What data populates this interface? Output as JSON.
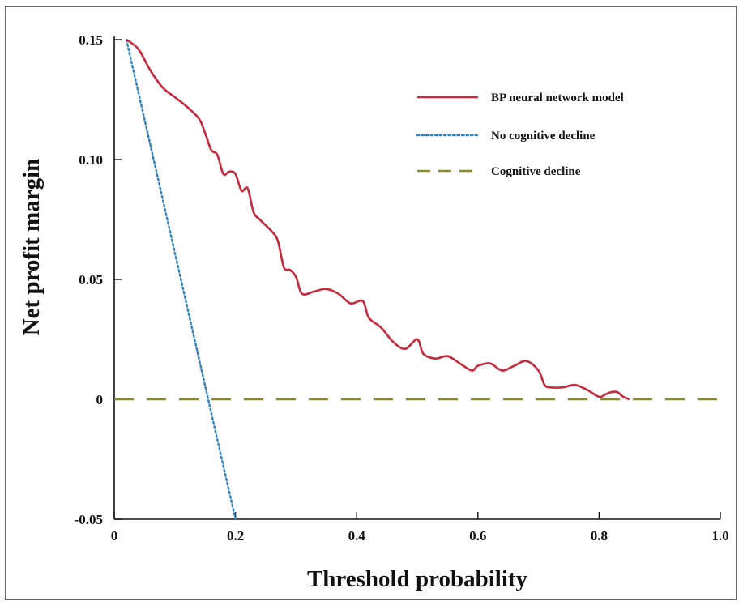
{
  "chart_data": {
    "type": "line",
    "xlabel": "Threshold probability",
    "ylabel": "Net profit margin",
    "xlim": [
      0,
      1.0
    ],
    "ylim": [
      -0.05,
      0.15
    ],
    "x_ticks": [
      0,
      0.2,
      0.4,
      0.6,
      0.8,
      1.0
    ],
    "x_tick_labels": [
      "0",
      "0.2",
      "0.4",
      "0.6",
      "0.8",
      "1.0"
    ],
    "y_ticks": [
      -0.05,
      0,
      0.05,
      0.1,
      0.15
    ],
    "y_tick_labels": [
      "-0.05",
      "0",
      "0.05",
      "0.10",
      "0.15"
    ],
    "legend_position": "top-right",
    "grid": false,
    "series": [
      {
        "name": "BP neural network model",
        "color": "#c8283c",
        "style": "solid",
        "x": [
          0.02,
          0.04,
          0.06,
          0.08,
          0.1,
          0.12,
          0.14,
          0.15,
          0.16,
          0.17,
          0.18,
          0.19,
          0.2,
          0.21,
          0.22,
          0.23,
          0.24,
          0.26,
          0.27,
          0.28,
          0.29,
          0.3,
          0.31,
          0.33,
          0.35,
          0.37,
          0.39,
          0.41,
          0.42,
          0.44,
          0.46,
          0.48,
          0.5,
          0.51,
          0.53,
          0.55,
          0.57,
          0.59,
          0.6,
          0.62,
          0.64,
          0.66,
          0.68,
          0.7,
          0.71,
          0.72,
          0.74,
          0.76,
          0.78,
          0.8,
          0.81,
          0.82,
          0.83,
          0.84,
          0.85
        ],
        "y": [
          0.15,
          0.146,
          0.137,
          0.13,
          0.126,
          0.122,
          0.117,
          0.111,
          0.104,
          0.102,
          0.094,
          0.095,
          0.094,
          0.087,
          0.088,
          0.078,
          0.075,
          0.07,
          0.066,
          0.055,
          0.054,
          0.051,
          0.044,
          0.045,
          0.046,
          0.044,
          0.04,
          0.041,
          0.034,
          0.03,
          0.024,
          0.021,
          0.025,
          0.019,
          0.017,
          0.018,
          0.015,
          0.012,
          0.014,
          0.015,
          0.012,
          0.014,
          0.016,
          0.012,
          0.006,
          0.005,
          0.005,
          0.006,
          0.004,
          0.001,
          0.002,
          0.003,
          0.003,
          0.001,
          0.0
        ]
      },
      {
        "name": "No cognitive decline",
        "color": "#2f82c0",
        "style": "dotted",
        "x": [
          0.02,
          0.2
        ],
        "y": [
          0.15,
          -0.05
        ]
      },
      {
        "name": "Cognitive decline",
        "color": "#8a8a2a",
        "style": "dashed",
        "x": [
          0,
          1.0
        ],
        "y": [
          0,
          0
        ]
      }
    ]
  }
}
